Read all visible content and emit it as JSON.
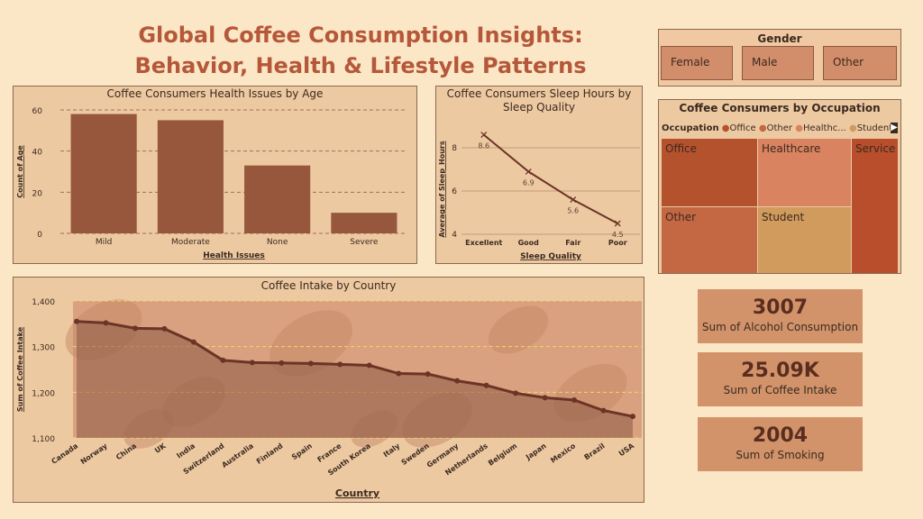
{
  "title_line1": "Global Coffee Consumption Insights:",
  "title_line2": "Behavior, Health & Lifestyle Patterns",
  "gender": {
    "title": "Gender",
    "options": [
      "Female",
      "Male",
      "Other"
    ]
  },
  "occupation": {
    "title": "Coffee Consumers by Occupation",
    "legend_label": "Occupation",
    "legend_items": [
      "Office",
      "Other",
      "Healthc...",
      "Student"
    ],
    "tiles": [
      "Office",
      "Healthcare",
      "Service",
      "Other",
      "Student"
    ],
    "colors": [
      "#b5522e",
      "#d98360",
      "#c46844",
      "#b45f3f",
      "#d09b5c"
    ]
  },
  "kpis": [
    {
      "value": "3007",
      "label": "Sum of Alcohol Consumption"
    },
    {
      "value": "25.09K",
      "label": "Sum of Coffee Intake"
    },
    {
      "value": "2004",
      "label": "Sum of Smoking"
    }
  ],
  "colors": {
    "bar": "#96573d",
    "line": "#6b3426",
    "accent": "#b5583a"
  },
  "chart_data": [
    {
      "type": "bar",
      "title": "Coffee Consumers Health Issues by Age",
      "categories": [
        "Mild",
        "Moderate",
        "None",
        "Severe"
      ],
      "values": [
        58,
        55,
        33,
        10
      ],
      "xlabel": "Health Issues",
      "ylabel": "Count of Age",
      "ylim": [
        0,
        60
      ],
      "yticks": [
        0,
        20,
        40,
        60
      ]
    },
    {
      "type": "line",
      "title": "Coffee Consumers Sleep Hours by Sleep Quality",
      "categories": [
        "Excellent",
        "Good",
        "Fair",
        "Poor"
      ],
      "values": [
        8.6,
        6.9,
        5.6,
        4.5
      ],
      "labels": [
        "8.6",
        "6.9",
        "5.6",
        "4.5"
      ],
      "xlabel": "Sleep Quality",
      "ylabel": "Average of Sleep_Hours",
      "ylim": [
        4,
        9
      ],
      "yticks": [
        4,
        6,
        8
      ]
    },
    {
      "type": "area",
      "title": "Coffee Intake by Country",
      "categories": [
        "Canada",
        "Norway",
        "China",
        "UK",
        "India",
        "Switzerland",
        "Australia",
        "Finland",
        "Spain",
        "France",
        "South Korea",
        "Italy",
        "Sweden",
        "Germany",
        "Netherlands",
        "Belgium",
        "Japan",
        "Mexico",
        "Brazil",
        "USA"
      ],
      "values": [
        1355,
        1352,
        1340,
        1339,
        1310,
        1270,
        1265,
        1264,
        1263,
        1261,
        1259,
        1241,
        1240,
        1225,
        1215,
        1198,
        1188,
        1183,
        1160,
        1147
      ],
      "xlabel": "Country",
      "ylabel": "Sum of Coffee Intake",
      "ylim": [
        1100,
        1400
      ],
      "yticks": [
        "1,100",
        "1,200",
        "1,300",
        "1,400"
      ]
    }
  ]
}
